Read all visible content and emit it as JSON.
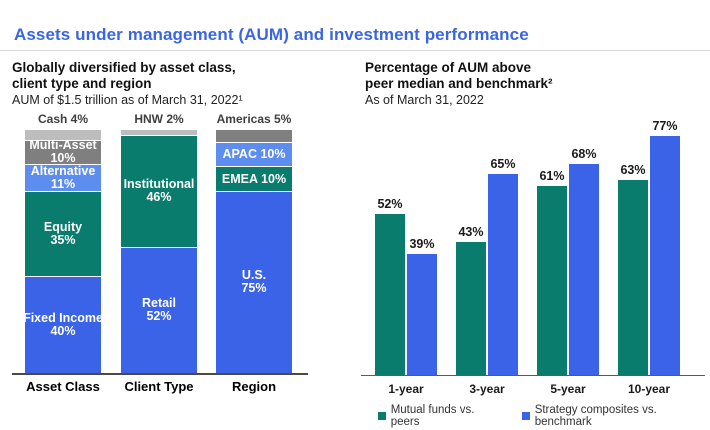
{
  "page": {
    "title": "Assets under management (AUM) and investment performance"
  },
  "left_panel": {
    "heading_line1": "Globally diversified by asset class,",
    "heading_line2": "client type and region",
    "subtitle": "AUM of $1.5 trillion as of March 31, 2022¹"
  },
  "right_panel": {
    "heading_line1": "Percentage of AUM above",
    "heading_line2": "peer median and benchmark²",
    "subtitle": "As of March 31, 2022"
  },
  "colors": {
    "title_blue": "#3b66e3",
    "bar_blue": "#3a63e8",
    "teal": "#0a7c6e",
    "light_blue": "#5d8dee",
    "light_gray": "#bdbdbd",
    "dark_gray": "#7f7f7f"
  },
  "chart_data": [
    {
      "type": "bar",
      "subtype": "stacked-percentage",
      "title": "Globally diversified by asset class, client type and region",
      "subtitle": "AUM of $1.5 trillion as of March 31, 2022",
      "ylim": [
        0,
        100
      ],
      "grid": false,
      "categories": [
        "Asset Class",
        "Client Type",
        "Region"
      ],
      "bars": [
        {
          "category": "Asset Class",
          "top_label": "Cash 4%",
          "segments": [
            {
              "name": "Cash",
              "value": 4,
              "color": "#bdbdbd",
              "label_lines": []
            },
            {
              "name": "Multi-Asset",
              "value": 10,
              "color": "#7f7f7f",
              "label_lines": [
                "Multi-Asset",
                "10%"
              ]
            },
            {
              "name": "Alternative",
              "value": 11,
              "color": "#5d8dee",
              "label_lines": [
                "Alternative",
                "11%"
              ]
            },
            {
              "name": "Equity",
              "value": 35,
              "color": "#0a7c6e",
              "label_lines": [
                "Equity",
                "35%"
              ]
            },
            {
              "name": "Fixed Income",
              "value": 40,
              "color": "#3a63e8",
              "label_lines": [
                "Fixed Income",
                "40%"
              ]
            }
          ]
        },
        {
          "category": "Client Type",
          "top_label": "HNW 2%",
          "segments": [
            {
              "name": "HNW",
              "value": 2,
              "color": "#bdbdbd",
              "label_lines": []
            },
            {
              "name": "Institutional",
              "value": 46,
              "color": "#0a7c6e",
              "label_lines": [
                "Institutional",
                "46%"
              ]
            },
            {
              "name": "Retail",
              "value": 52,
              "color": "#3a63e8",
              "label_lines": [
                "Retail",
                "52%"
              ]
            }
          ]
        },
        {
          "category": "Region",
          "top_label": "Americas 5%",
          "segments": [
            {
              "name": "Americas",
              "value": 5,
              "color": "#7f7f7f",
              "label_lines": []
            },
            {
              "name": "APAC",
              "value": 10,
              "color": "#5d8dee",
              "label_lines": [
                "APAC 10%"
              ]
            },
            {
              "name": "EMEA",
              "value": 10,
              "color": "#0a7c6e",
              "label_lines": [
                "EMEA 10%"
              ]
            },
            {
              "name": "U.S.",
              "value": 75,
              "color": "#3a63e8",
              "label_lines": [
                "U.S.",
                "75%"
              ]
            }
          ]
        }
      ]
    },
    {
      "type": "bar",
      "subtype": "grouped",
      "title": "Percentage of AUM above peer median and benchmark",
      "subtitle": "As of March 31, 2022",
      "ylim": [
        0,
        100
      ],
      "grid": false,
      "legend_position": "bottom",
      "value_label_suffix": "%",
      "categories": [
        "1-year",
        "3-year",
        "5-year",
        "10-year"
      ],
      "series": [
        {
          "name": "Mutual funds vs. peers",
          "color": "#0a7c6e",
          "values": [
            52,
            43,
            61,
            63
          ]
        },
        {
          "name": "Strategy composites vs. benchmark",
          "color": "#3a63e8",
          "values": [
            39,
            65,
            68,
            77
          ]
        }
      ]
    }
  ]
}
